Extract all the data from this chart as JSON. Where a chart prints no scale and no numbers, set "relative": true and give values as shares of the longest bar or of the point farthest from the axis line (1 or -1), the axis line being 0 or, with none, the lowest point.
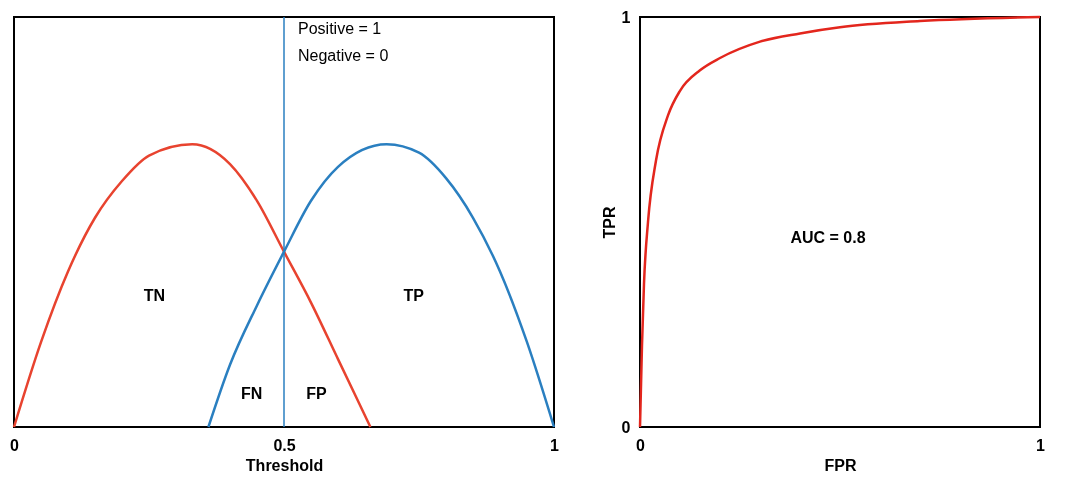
{
  "chart_data": [
    {
      "type": "line",
      "relative": true,
      "xlabel": "Threshold",
      "xlim": [
        0,
        1
      ],
      "xticks": [
        0,
        0.5,
        1
      ],
      "tick_labels": "x",
      "grid": false,
      "series": [
        {
          "color": "#e8432f",
          "x": [
            0,
            0.05,
            0.1,
            0.15,
            0.2,
            0.25,
            0.33,
            0.4,
            0.45,
            0.5,
            0.55,
            0.6,
            0.66
          ],
          "values": [
            0,
            0.3,
            0.55,
            0.74,
            0.87,
            0.96,
            1.0,
            0.93,
            0.8,
            0.62,
            0.44,
            0.24,
            0
          ]
        },
        {
          "color": "#2a7fc0",
          "x": [
            0.36,
            0.4,
            0.45,
            0.5,
            0.55,
            0.6,
            0.69,
            0.75,
            0.8,
            0.85,
            0.9,
            0.95,
            1.0
          ],
          "values": [
            0,
            0.22,
            0.43,
            0.62,
            0.8,
            0.92,
            1.0,
            0.97,
            0.88,
            0.74,
            0.55,
            0.3,
            0
          ]
        }
      ],
      "ref_lines": [
        {
          "axis": "x",
          "value": 0.5,
          "color": "#2a7fc0"
        }
      ],
      "annotations": [
        "Positive = 1",
        "Negative = 0",
        "TN",
        "TP",
        "FN",
        "FP"
      ]
    },
    {
      "type": "line",
      "xlabel": "FPR",
      "ylabel": "TPR",
      "xlim": [
        0,
        1
      ],
      "ylim": [
        0,
        1
      ],
      "xticks": [
        0,
        1
      ],
      "yticks": [
        0,
        1
      ],
      "grid": false,
      "series": [
        {
          "color": "#e3261d",
          "x": [
            0,
            0.005,
            0.01,
            0.02,
            0.04,
            0.07,
            0.1,
            0.15,
            0.2,
            0.3,
            0.4,
            0.5,
            0.7,
            1.0
          ],
          "values": [
            0,
            0.2,
            0.35,
            0.5,
            0.65,
            0.76,
            0.82,
            0.87,
            0.9,
            0.94,
            0.96,
            0.975,
            0.99,
            1.0
          ]
        }
      ],
      "annotations": [
        "AUC = 0.8"
      ]
    }
  ]
}
